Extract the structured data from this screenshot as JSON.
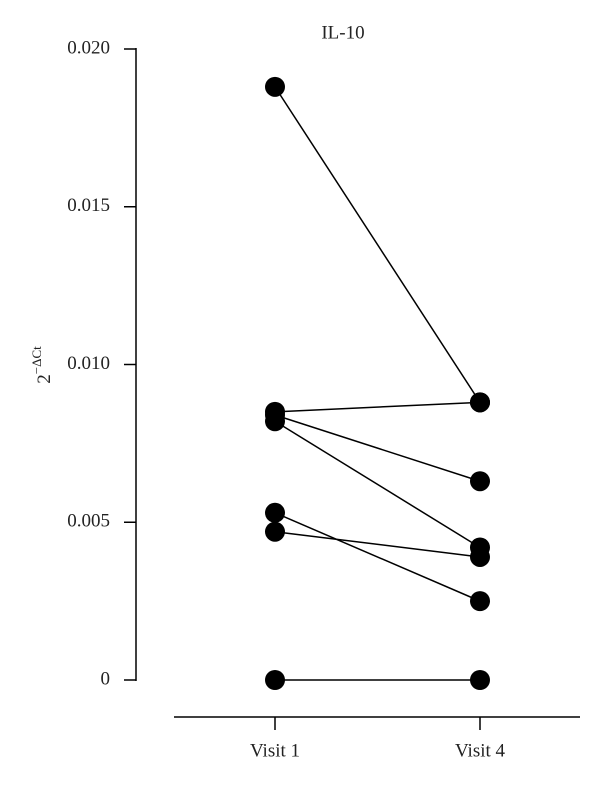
{
  "chart_data": {
    "type": "line",
    "title": "IL-10",
    "ylabel": "2",
    "ylabel_exponent": "−ΔCt",
    "categories": [
      "Visit 1",
      "Visit 4"
    ],
    "series": [
      {
        "color": "#000000",
        "values": [
          0.0188,
          0.0088
        ]
      },
      {
        "color": "#000000",
        "values": [
          0.0085,
          0.0088
        ]
      },
      {
        "color": "#000000",
        "values": [
          0.0084,
          0.0063
        ]
      },
      {
        "color": "#000000",
        "values": [
          0.0082,
          0.0042
        ]
      },
      {
        "color": "#000000",
        "values": [
          0.0053,
          0.0025
        ]
      },
      {
        "color": "#000000",
        "values": [
          0.0047,
          0.0039
        ]
      },
      {
        "color": "#000000",
        "values": [
          0,
          0
        ]
      }
    ],
    "ylim": [
      0,
      0.02
    ],
    "yticks": [
      0,
      0.005,
      {
        "value": 0.01,
        "label": "0.010"
      },
      0.015,
      {
        "value": 0.02,
        "label": "0.020"
      }
    ]
  }
}
